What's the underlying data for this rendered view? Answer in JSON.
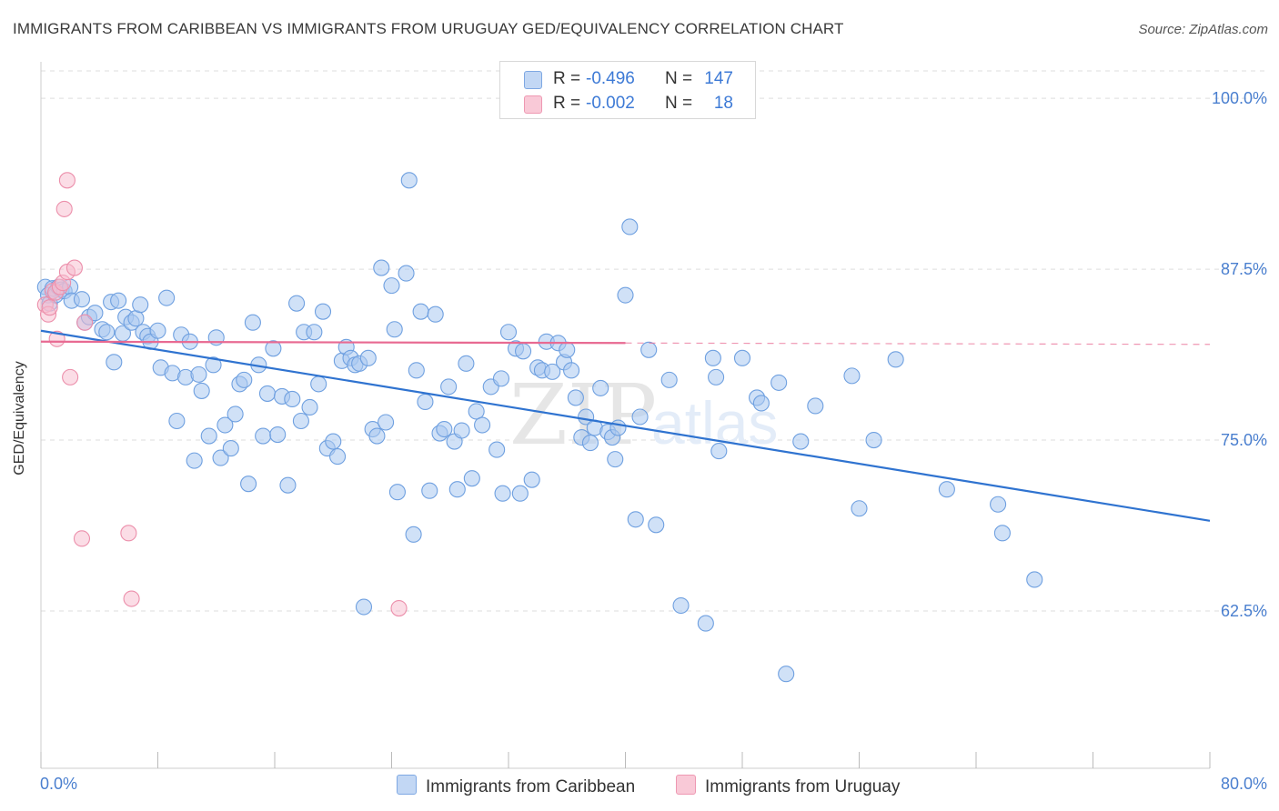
{
  "title": "IMMIGRANTS FROM CARIBBEAN VS IMMIGRANTS FROM URUGUAY GED/EQUIVALENCY CORRELATION CHART",
  "source": "Source: ZipAtlas.com",
  "watermark": {
    "zip": "ZIP",
    "atlas": "atlas"
  },
  "legend": {
    "r_label": "R =",
    "n_label": "N =",
    "rows": [
      {
        "r": "-0.496",
        "n": "147"
      },
      {
        "r": "-0.002",
        "n": "18"
      }
    ]
  },
  "bottom_legend": {
    "caribbean": "Immigrants from Caribbean",
    "uruguay": "Immigrants from Uruguay"
  },
  "colors": {
    "caribbean_fill": "#a9c8f0",
    "caribbean_stroke": "#6fa0e0",
    "caribbean_line": "#2f73d0",
    "uruguay_fill": "#f7bccd",
    "uruguay_stroke": "#ec8fab",
    "uruguay_line": "#e86a92",
    "tick_label": "#4a7fcf",
    "grid": "#dddddd"
  },
  "chart_data": {
    "type": "scatter",
    "title": "IMMIGRANTS FROM CARIBBEAN VS IMMIGRANTS FROM URUGUAY GED/EQUIVALENCY CORRELATION CHART",
    "xlabel": "",
    "ylabel": "GED/Equivalency",
    "x_unit": "%",
    "xlim": [
      0,
      80
    ],
    "ylim": [
      51,
      102
    ],
    "x_tick_labels": [
      "0.0%",
      "80.0%"
    ],
    "y_ticks": [
      100,
      87.5,
      75,
      62.5
    ],
    "y_tick_labels": [
      "100.0%",
      "87.5%",
      "75.0%",
      "62.5%"
    ],
    "grid": "horizontal dashed",
    "legend_position": "top-center",
    "series": [
      {
        "name": "Immigrants from Caribbean",
        "r": -0.496,
        "n": 147,
        "trend": {
          "x": [
            0,
            80
          ],
          "y": [
            83.0,
            69.1
          ]
        },
        "points": [
          [
            0.3,
            86.2
          ],
          [
            0.5,
            85.6
          ],
          [
            0.6,
            85.0
          ],
          [
            0.8,
            86.1
          ],
          [
            1.0,
            85.6
          ],
          [
            1.2,
            86.2
          ],
          [
            1.4,
            86.0
          ],
          [
            1.6,
            85.9
          ],
          [
            2.0,
            86.2
          ],
          [
            2.1,
            85.2
          ],
          [
            2.8,
            85.3
          ],
          [
            3.0,
            83.6
          ],
          [
            3.3,
            84.0
          ],
          [
            3.7,
            84.3
          ],
          [
            4.2,
            83.1
          ],
          [
            4.5,
            82.9
          ],
          [
            4.8,
            85.1
          ],
          [
            5.0,
            80.7
          ],
          [
            5.3,
            85.2
          ],
          [
            5.6,
            82.8
          ],
          [
            5.8,
            84.0
          ],
          [
            6.2,
            83.6
          ],
          [
            6.5,
            83.9
          ],
          [
            6.8,
            84.9
          ],
          [
            7.0,
            82.9
          ],
          [
            7.3,
            82.6
          ],
          [
            7.5,
            82.2
          ],
          [
            8.0,
            83.0
          ],
          [
            8.2,
            80.3
          ],
          [
            8.6,
            85.4
          ],
          [
            9.0,
            79.9
          ],
          [
            9.3,
            76.4
          ],
          [
            9.6,
            82.7
          ],
          [
            9.9,
            79.6
          ],
          [
            10.2,
            82.2
          ],
          [
            10.5,
            73.5
          ],
          [
            10.8,
            79.8
          ],
          [
            11.0,
            78.6
          ],
          [
            11.5,
            75.3
          ],
          [
            11.8,
            80.5
          ],
          [
            12.0,
            82.5
          ],
          [
            12.3,
            73.7
          ],
          [
            12.6,
            76.1
          ],
          [
            13.0,
            74.4
          ],
          [
            13.3,
            76.9
          ],
          [
            13.6,
            79.1
          ],
          [
            13.9,
            79.4
          ],
          [
            14.2,
            71.8
          ],
          [
            14.5,
            83.6
          ],
          [
            14.9,
            80.5
          ],
          [
            15.2,
            75.3
          ],
          [
            15.5,
            78.4
          ],
          [
            15.9,
            81.7
          ],
          [
            16.2,
            75.4
          ],
          [
            16.5,
            78.2
          ],
          [
            16.9,
            71.7
          ],
          [
            17.2,
            78.0
          ],
          [
            17.5,
            85.0
          ],
          [
            17.8,
            76.4
          ],
          [
            18.0,
            82.9
          ],
          [
            18.4,
            77.4
          ],
          [
            18.7,
            82.9
          ],
          [
            19.0,
            79.1
          ],
          [
            19.3,
            84.4
          ],
          [
            19.6,
            74.4
          ],
          [
            20.0,
            74.9
          ],
          [
            20.3,
            73.8
          ],
          [
            20.6,
            80.8
          ],
          [
            20.9,
            81.8
          ],
          [
            21.2,
            81.0
          ],
          [
            21.5,
            80.5
          ],
          [
            21.8,
            80.6
          ],
          [
            22.1,
            62.8
          ],
          [
            22.4,
            81.0
          ],
          [
            22.7,
            75.8
          ],
          [
            23.0,
            75.3
          ],
          [
            23.3,
            87.6
          ],
          [
            23.6,
            76.3
          ],
          [
            24.0,
            86.3
          ],
          [
            24.2,
            83.1
          ],
          [
            24.4,
            71.2
          ],
          [
            25.0,
            87.2
          ],
          [
            25.5,
            68.1
          ],
          [
            25.7,
            80.1
          ],
          [
            26.0,
            84.4
          ],
          [
            26.3,
            77.8
          ],
          [
            26.6,
            71.3
          ],
          [
            27.0,
            84.2
          ],
          [
            27.3,
            75.5
          ],
          [
            27.6,
            75.8
          ],
          [
            27.9,
            78.9
          ],
          [
            28.3,
            74.9
          ],
          [
            28.5,
            71.4
          ],
          [
            28.8,
            75.7
          ],
          [
            29.1,
            80.6
          ],
          [
            29.5,
            72.2
          ],
          [
            29.8,
            77.1
          ],
          [
            30.2,
            76.1
          ],
          [
            30.8,
            78.9
          ],
          [
            31.2,
            74.3
          ],
          [
            31.5,
            79.5
          ],
          [
            31.6,
            71.1
          ],
          [
            32.0,
            82.9
          ],
          [
            32.5,
            81.7
          ],
          [
            32.8,
            71.1
          ],
          [
            33.0,
            81.5
          ],
          [
            33.6,
            72.1
          ],
          [
            34.0,
            80.3
          ],
          [
            34.3,
            80.1
          ],
          [
            34.6,
            82.2
          ],
          [
            35.0,
            80.0
          ],
          [
            35.4,
            82.1
          ],
          [
            35.8,
            80.7
          ],
          [
            36.0,
            81.6
          ],
          [
            36.3,
            80.1
          ],
          [
            36.6,
            78.1
          ],
          [
            37.0,
            75.2
          ],
          [
            37.3,
            76.7
          ],
          [
            37.6,
            74.8
          ],
          [
            37.9,
            75.9
          ],
          [
            38.3,
            78.8
          ],
          [
            38.8,
            75.6
          ],
          [
            39.1,
            75.2
          ],
          [
            39.3,
            73.6
          ],
          [
            39.5,
            75.9
          ],
          [
            40.0,
            85.6
          ],
          [
            40.3,
            90.6
          ],
          [
            40.7,
            69.2
          ],
          [
            41.0,
            76.7
          ],
          [
            41.6,
            81.6
          ],
          [
            42.1,
            68.8
          ],
          [
            43.0,
            79.4
          ],
          [
            43.8,
            62.9
          ],
          [
            45.5,
            61.6
          ],
          [
            46.0,
            81.0
          ],
          [
            46.2,
            79.6
          ],
          [
            46.4,
            74.2
          ],
          [
            48.0,
            81.0
          ],
          [
            49.0,
            78.1
          ],
          [
            49.3,
            77.7
          ],
          [
            50.5,
            79.2
          ],
          [
            51.0,
            57.9
          ],
          [
            52.0,
            74.9
          ],
          [
            53.0,
            77.5
          ],
          [
            55.5,
            79.7
          ],
          [
            56.0,
            70.0
          ],
          [
            57.0,
            75.0
          ],
          [
            58.5,
            80.9
          ],
          [
            62.0,
            71.4
          ],
          [
            65.5,
            70.3
          ],
          [
            65.8,
            68.2
          ],
          [
            68.0,
            64.8
          ],
          [
            25.2,
            94.0
          ]
        ]
      },
      {
        "name": "Immigrants from Uruguay",
        "r": -0.002,
        "n": 18,
        "trend": {
          "x": [
            0,
            40
          ],
          "y": [
            82.2,
            82.1
          ]
        },
        "trend_extension": {
          "x": [
            40,
            80
          ],
          "y": [
            82.1,
            82.0
          ]
        },
        "points": [
          [
            0.3,
            84.9
          ],
          [
            0.5,
            84.2
          ],
          [
            0.6,
            84.7
          ],
          [
            0.8,
            85.9
          ],
          [
            1.0,
            85.8
          ],
          [
            1.1,
            82.4
          ],
          [
            1.3,
            86.2
          ],
          [
            1.5,
            86.5
          ],
          [
            1.6,
            91.9
          ],
          [
            1.8,
            87.3
          ],
          [
            1.8,
            94.0
          ],
          [
            2.0,
            79.6
          ],
          [
            2.3,
            87.6
          ],
          [
            2.8,
            67.8
          ],
          [
            3.0,
            83.6
          ],
          [
            6.0,
            68.2
          ],
          [
            6.2,
            63.4
          ],
          [
            24.5,
            62.7
          ]
        ]
      }
    ]
  }
}
